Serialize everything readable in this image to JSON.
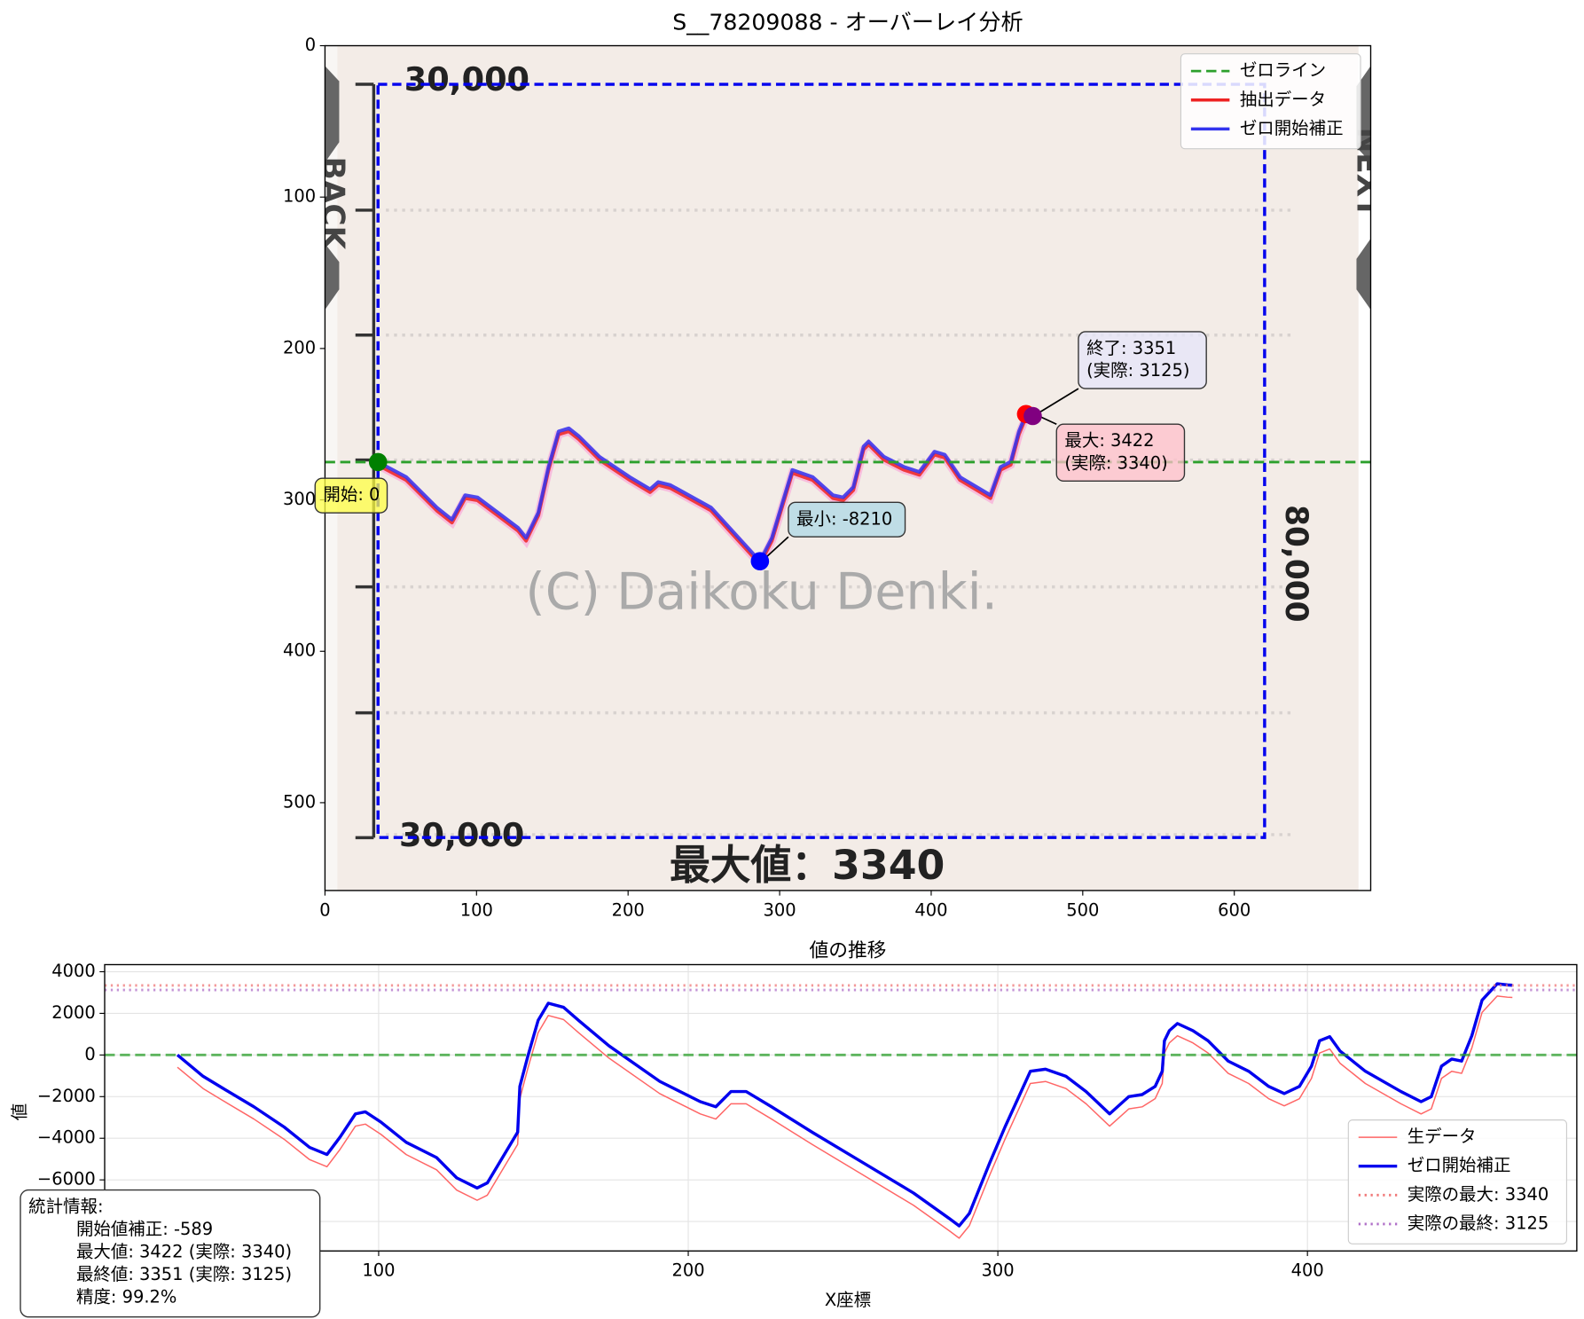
{
  "chart_data": [
    {
      "type": "line",
      "title": "S__78209088 - オーバーレイ分析",
      "xlim": [
        0,
        690
      ],
      "ylim": [
        558,
        0
      ],
      "xticks": [
        0,
        100,
        200,
        300,
        400,
        500,
        600
      ],
      "yticks": [
        0,
        100,
        200,
        300,
        400,
        500
      ],
      "grid": false,
      "legend": "upper right",
      "image_texts": [
        "30,000",
        "30,000",
        "(C) Daikoku Denki.",
        "最大値：3340",
        "80,000",
        "BACK",
        "NEXT"
      ],
      "roi": {
        "x": [
          35,
          620
        ],
        "y": [
          25.5,
          523
        ],
        "color": "#0000ee"
      },
      "hlines": [
        {
          "name": "ゼロライン",
          "y": 275,
          "color": "#2ca02c",
          "style": "dashed"
        }
      ],
      "series": [
        {
          "name": "抽出データ",
          "color": "#ee2222",
          "x": [
            35,
            53.6,
            73.7,
            83.8,
            92.5,
            100.6,
            114,
            127.4,
            132.7,
            140.8,
            147.5,
            154.2,
            160.9,
            167.6,
            181,
            201.1,
            214.5,
            219.9,
            227.9,
            254.7,
            287,
            294.9,
            308.4,
            321.8,
            335.2,
            341.9,
            348.6,
            355.4,
            358.7,
            368.7,
            382.1,
            392.2,
            402.2,
            408.9,
            419,
            439.1,
            445.8,
            452.5,
            457.9,
            462.6,
            467
          ],
          "values": [
            277,
            286.9,
            307,
            315,
            298.9,
            300.3,
            310.3,
            320.4,
            327,
            310.3,
            280.2,
            256.7,
            254.7,
            260,
            273.4,
            286.9,
            294.9,
            290.2,
            292.2,
            307,
            342.5,
            327,
            282.2,
            286.9,
            298.9,
            300.3,
            293.6,
            266.7,
            263.4,
            273.4,
            280.2,
            283.5,
            270.1,
            272.1,
            286.9,
            298.9,
            280.2,
            276.8,
            256.7,
            245.3,
            246.6
          ]
        },
        {
          "name": "ゼロ開始補正",
          "color": "#3333ee",
          "x": [
            35,
            53.6,
            73.7,
            83.8,
            92.5,
            100.6,
            114,
            127.4,
            132.7,
            140.8,
            147.5,
            154.2,
            160.9,
            167.6,
            181,
            201.1,
            214.5,
            219.9,
            227.9,
            254.7,
            287,
            294.9,
            308.4,
            321.8,
            335.2,
            341.9,
            348.6,
            355.4,
            358.7,
            368.7,
            382.1,
            392.2,
            402.2,
            408.9,
            419,
            439.1,
            445.8,
            452.5,
            457.9,
            462.6,
            467
          ],
          "values": [
            275,
            284.9,
            305,
            313,
            296.9,
            298.3,
            308.3,
            318.4,
            325,
            308.3,
            278.2,
            254.7,
            252.7,
            258,
            271.4,
            284.9,
            292.9,
            288.2,
            290.2,
            305,
            340.5,
            325,
            280.2,
            284.9,
            296.9,
            298.3,
            291.6,
            264.7,
            261.4,
            271.4,
            278.2,
            281.5,
            268.1,
            270.1,
            284.9,
            296.9,
            278.2,
            274.8,
            254.7,
            243.3,
            244.6
          ]
        }
      ],
      "points": [
        {
          "x": 35,
          "y": 275,
          "color": "#008000",
          "box_color": "#ffff44",
          "label": [
            "開始: 0"
          ]
        },
        {
          "x": 287,
          "y": 340.5,
          "color": "#0000ff",
          "box_color": "#add8e6",
          "label": [
            "最小: -8210"
          ]
        },
        {
          "x": 462.6,
          "y": 243.3,
          "color": "#ff0000",
          "box_color": "#ffc0cb",
          "label": [
            "最大: 3422",
            "(実際: 3340)"
          ]
        },
        {
          "x": 467,
          "y": 244.6,
          "color": "#800080",
          "box_color": "#e6e6fa",
          "label": [
            "終了: 3351",
            "(実際: 3125)"
          ]
        }
      ]
    },
    {
      "type": "line",
      "title": "値の推移",
      "xlabel": "X座標",
      "ylabel": "値",
      "xlim": [
        11.5,
        487
      ],
      "ylim": [
        -9415,
        4341
      ],
      "xticks": [
        100,
        200,
        300,
        400
      ],
      "yticks": [
        {
          "value": -8000,
          "label": "−8000"
        },
        {
          "value": -6000,
          "label": "−6000"
        },
        {
          "value": -4000,
          "label": "−4000"
        },
        {
          "value": -2000,
          "label": "−2000"
        },
        0,
        2000,
        4000
      ],
      "grid": true,
      "legend": "lower right",
      "x": [
        35,
        43.3,
        49.8,
        59.7,
        69.5,
        77.7,
        83.3,
        87.5,
        92.5,
        95.7,
        100.7,
        108.9,
        118.7,
        125.2,
        131.8,
        135.1,
        140,
        144.9,
        145.6,
        148.2,
        151.5,
        154.8,
        159.7,
        164.6,
        174.4,
        190.8,
        203.9,
        208.9,
        213.8,
        218.7,
        226.9,
        240,
        256.4,
        272.8,
        284.3,
        287.5,
        290.8,
        297.4,
        302.3,
        310.5,
        315.4,
        322,
        328.5,
        336.1,
        342.3,
        346.6,
        350.8,
        353.1,
        353.8,
        355.4,
        358,
        363,
        367.9,
        374.4,
        381,
        387.5,
        392.5,
        397.4,
        401.3,
        403.9,
        407.2,
        410.5,
        418.7,
        430.2,
        436.7,
        440,
        443.3,
        446.6,
        449.8,
        453.1,
        456.4,
        461.3,
        464.6,
        466.2
      ],
      "series": [
        {
          "name": "生データ",
          "color": "#ff6666",
          "width": 1.3,
          "values": [
            -589,
            -1613,
            -2199,
            -3077,
            -4052,
            -5028,
            -5369,
            -4540,
            -3418,
            -3321,
            -3809,
            -4784,
            -5516,
            -6491,
            -6979,
            -6735,
            -5516,
            -4296,
            -2101,
            -639,
            1070,
            1899,
            1704,
            1070,
            -150,
            -1857,
            -2833,
            -3077,
            -2345,
            -2345,
            -3077,
            -4296,
            -5760,
            -7223,
            -8443,
            -8799,
            -8199,
            -5760,
            -4052,
            -1369,
            -1272,
            -1613,
            -2345,
            -3418,
            -2589,
            -2491,
            -2101,
            -1369,
            94,
            582,
            923,
            582,
            94,
            -882,
            -1369,
            -2101,
            -2443,
            -2101,
            -1126,
            94,
            289,
            -394,
            -1369,
            -2345,
            -2833,
            -2589,
            -1126,
            -784,
            -882,
            338,
            2045,
            2833,
            2777,
            2762
          ]
        },
        {
          "name": "ゼロ開始補正",
          "color": "#0000ee",
          "width": 3,
          "values": [
            0,
            -1024,
            -1610,
            -2488,
            -3463,
            -4439,
            -4780,
            -3951,
            -2829,
            -2732,
            -3220,
            -4195,
            -4927,
            -5902,
            -6390,
            -6146,
            -4927,
            -3707,
            -1512,
            -50,
            1659,
            2488,
            2293,
            1659,
            439,
            -1268,
            -2244,
            -2488,
            -1756,
            -1756,
            -2488,
            -3707,
            -5171,
            -6634,
            -7854,
            -8210,
            -7610,
            -5171,
            -3463,
            -780,
            -683,
            -1024,
            -1756,
            -2829,
            -2000,
            -1902,
            -1512,
            -780,
            683,
            1171,
            1512,
            1171,
            683,
            -293,
            -780,
            -1512,
            -1854,
            -1512,
            -537,
            683,
            878,
            195,
            -780,
            -1756,
            -2244,
            -2000,
            -537,
            -195,
            -293,
            927,
            2634,
            3422,
            3366,
            3351
          ]
        }
      ],
      "hlines": [
        {
          "y": 0,
          "color": "#2ca02c",
          "style": "dashed"
        },
        {
          "name": "実際の最大: 3340",
          "y": 3340,
          "color": "#f07878",
          "style": "dotted"
        },
        {
          "name": "実際の最終: 3125",
          "y": 3125,
          "color": "#b070c8",
          "style": "dotted"
        }
      ]
    }
  ],
  "stats_box": {
    "title": "統計情報:",
    "lines": [
      "開始値補正: -589",
      "最大値: 3422 (実際: 3340)",
      "最終値: 3351 (実際: 3125)",
      "精度: 99.2%"
    ]
  }
}
